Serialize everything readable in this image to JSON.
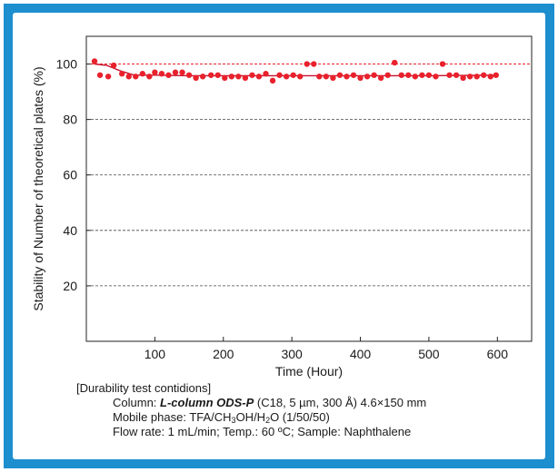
{
  "chart_data": {
    "type": "scatter",
    "xlabel": "Time (Hour)",
    "ylabel": "Stability of Number of theoretical plates (%)",
    "xlim": [
      0,
      650
    ],
    "ylim": [
      0,
      110
    ],
    "xticks": [
      "100",
      "200",
      "300",
      "400",
      "500",
      "600"
    ],
    "yticks": [
      "20",
      "40",
      "60",
      "80",
      "100"
    ],
    "grid": "horizontal dashed at y ticks",
    "reference_line": {
      "y": 100,
      "style": "dashed",
      "color": "#e8212c"
    },
    "marker_color": "#e8212c",
    "trend_color": "#c8102e",
    "series": [
      {
        "x": [
          12,
          20,
          32,
          40,
          52,
          62,
          72,
          82,
          92,
          100,
          110,
          120,
          130,
          140,
          150,
          160,
          170,
          182,
          192,
          202,
          212,
          222,
          232,
          242,
          252,
          262,
          272,
          282,
          292,
          302,
          312,
          322,
          332,
          340,
          350,
          360,
          370,
          380,
          390,
          400,
          410,
          420,
          430,
          440,
          450,
          460,
          470,
          480,
          490,
          500,
          510,
          520,
          530,
          540,
          550,
          560,
          570,
          580,
          590,
          598
        ],
        "y": [
          101,
          96,
          95.5,
          99.5,
          96.5,
          95.5,
          95.5,
          96.5,
          95.5,
          97,
          96.5,
          96,
          97,
          97,
          96,
          95,
          95.5,
          96,
          96,
          95,
          95.5,
          95.5,
          95,
          96,
          95.5,
          96.5,
          94,
          96,
          95.5,
          96,
          95.5,
          100,
          100,
          95.5,
          95.5,
          95,
          96,
          95.5,
          96,
          95,
          95.5,
          96,
          95,
          96,
          100.5,
          96,
          96,
          95.5,
          96,
          96,
          95.5,
          100,
          96,
          96,
          95,
          95.5,
          95.5,
          96,
          95.5,
          96
        ]
      }
    ],
    "trend": {
      "x": [
        12,
        30,
        50,
        70,
        100,
        150,
        200,
        300,
        400,
        500,
        600
      ],
      "y": [
        100,
        99.5,
        97.5,
        96,
        96,
        95.8,
        95.8,
        95.8,
        95.8,
        95.8,
        96
      ]
    }
  },
  "notes": {
    "heading": "[Durability test contidions]",
    "column_label": "Column: ",
    "column_name": "L-column ODS-P",
    "column_detail": " (C18, 5 µm, 300 Å) 4.6×150 mm",
    "mobile_prefix": "Mobile phase: TFA/CH",
    "mobile_sub1": "3",
    "mobile_mid": "OH/H",
    "mobile_sub2": "2",
    "mobile_suffix": "O (1/50/50)",
    "conditions": "Flow rate: 1 mL/min; Temp.: 60 ºC; Sample: Naphthalene"
  },
  "colors": {
    "frame": "#1d8fcf"
  }
}
